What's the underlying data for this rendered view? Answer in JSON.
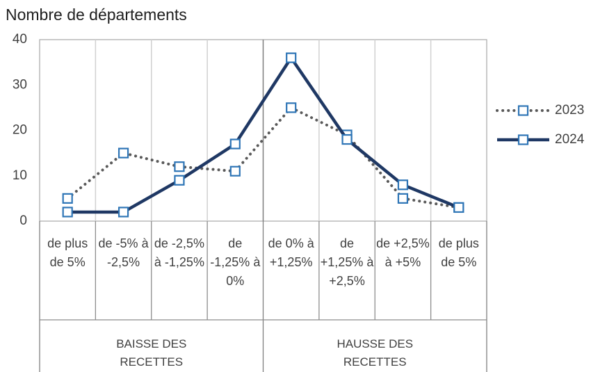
{
  "chart_data": {
    "type": "line",
    "y_axis_title": "Nombre de départements",
    "categories": [
      "de plus de 5%",
      "de -5% à -2,5%",
      "de -2,5% à -1,25%",
      "de -1,25% à 0%",
      "de 0% à +1,25%",
      "de +1,25% à +2,5%",
      "de +2,5% à +5%",
      "de plus de 5%"
    ],
    "groups": [
      "BAISSE DES RECETTES",
      "HAUSSE DES RECETTES"
    ],
    "series": [
      {
        "name": "2023",
        "color": "#595959",
        "style": "dotted",
        "marker_color": "#2e75b6",
        "values": [
          5,
          15,
          12,
          11,
          25,
          19,
          5,
          3
        ]
      },
      {
        "name": "2024",
        "color": "#1f3864",
        "style": "solid",
        "marker_color": "#2e75b6",
        "values": [
          2,
          2,
          9,
          17,
          36,
          18,
          8,
          3
        ]
      }
    ],
    "ylim": [
      0,
      40
    ],
    "yticks": [
      0,
      10,
      20,
      30,
      40
    ],
    "grid": false,
    "legend": "right"
  }
}
